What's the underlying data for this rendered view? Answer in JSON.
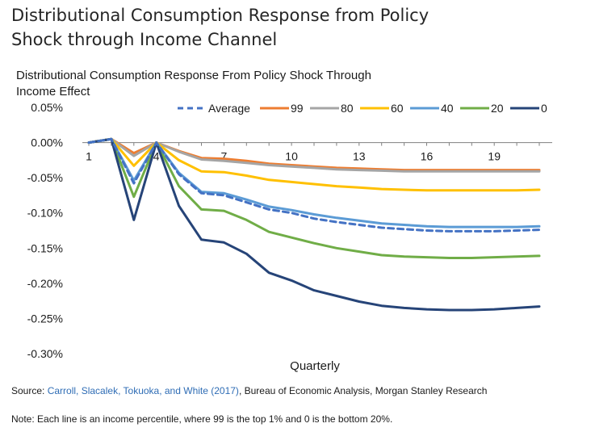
{
  "heading": {
    "line1": "Distributional Consumption Response from Policy",
    "line2": "Shock through Income Channel"
  },
  "chart_data": {
    "type": "line",
    "title_line1": "Distributional Consumption Response From Policy Shock Through",
    "title_line2": "Income Effect",
    "xlabel": "Quarterly",
    "ylabel": "",
    "x": [
      1,
      2,
      3,
      4,
      5,
      6,
      7,
      8,
      9,
      10,
      11,
      12,
      13,
      14,
      15,
      16,
      17,
      18,
      19,
      20,
      21
    ],
    "x_tick_labels": [
      "1",
      "4",
      "7",
      "10",
      "13",
      "16",
      "19"
    ],
    "x_tick_values": [
      1,
      4,
      7,
      10,
      13,
      16,
      19
    ],
    "y_tick_labels": [
      "0.05%",
      "0.00%",
      "-0.05%",
      "-0.10%",
      "-0.15%",
      "-0.20%",
      "-0.25%",
      "-0.30%"
    ],
    "y_tick_values": [
      0.05,
      0.0,
      -0.05,
      -0.1,
      -0.15,
      -0.2,
      -0.25,
      -0.3
    ],
    "ylim": [
      -0.3,
      0.05
    ],
    "legend_position": "top-right",
    "series": [
      {
        "name": "Average",
        "color": "#4472c4",
        "dashed": true,
        "values": [
          0.0,
          0.005,
          -0.058,
          0.0,
          -0.045,
          -0.072,
          -0.075,
          -0.085,
          -0.095,
          -0.1,
          -0.108,
          -0.113,
          -0.117,
          -0.121,
          -0.123,
          -0.125,
          -0.126,
          -0.126,
          -0.126,
          -0.125,
          -0.124
        ]
      },
      {
        "name": "99",
        "color": "#ed7d31",
        "dashed": false,
        "values": [
          0.0,
          0.005,
          -0.015,
          0.0,
          -0.012,
          -0.022,
          -0.023,
          -0.026,
          -0.03,
          -0.032,
          -0.034,
          -0.036,
          -0.037,
          -0.038,
          -0.039,
          -0.039,
          -0.039,
          -0.039,
          -0.039,
          -0.039,
          -0.039
        ]
      },
      {
        "name": "80",
        "color": "#a5a5a5",
        "dashed": false,
        "values": [
          0.0,
          0.005,
          -0.019,
          0.0,
          -0.013,
          -0.024,
          -0.026,
          -0.029,
          -0.032,
          -0.034,
          -0.036,
          -0.038,
          -0.039,
          -0.04,
          -0.041,
          -0.041,
          -0.041,
          -0.041,
          -0.041,
          -0.041,
          -0.041
        ]
      },
      {
        "name": "60",
        "color": "#ffc000",
        "dashed": false,
        "values": [
          0.0,
          0.005,
          -0.033,
          0.0,
          -0.025,
          -0.041,
          -0.042,
          -0.047,
          -0.053,
          -0.056,
          -0.059,
          -0.062,
          -0.064,
          -0.066,
          -0.067,
          -0.068,
          -0.068,
          -0.068,
          -0.068,
          -0.068,
          -0.067
        ]
      },
      {
        "name": "40",
        "color": "#5b9bd5",
        "dashed": false,
        "values": [
          0.0,
          0.005,
          -0.054,
          0.0,
          -0.043,
          -0.07,
          -0.072,
          -0.081,
          -0.091,
          -0.096,
          -0.102,
          -0.107,
          -0.111,
          -0.115,
          -0.117,
          -0.119,
          -0.12,
          -0.12,
          -0.12,
          -0.12,
          -0.119
        ]
      },
      {
        "name": "20",
        "color": "#70ad47",
        "dashed": false,
        "values": [
          0.0,
          0.005,
          -0.077,
          0.0,
          -0.062,
          -0.095,
          -0.097,
          -0.11,
          -0.127,
          -0.135,
          -0.143,
          -0.15,
          -0.155,
          -0.16,
          -0.162,
          -0.163,
          -0.164,
          -0.164,
          -0.163,
          -0.162,
          -0.161
        ]
      },
      {
        "name": "0",
        "color": "#264478",
        "dashed": false,
        "values": [
          0.0,
          0.005,
          -0.11,
          0.0,
          -0.09,
          -0.138,
          -0.142,
          -0.158,
          -0.185,
          -0.196,
          -0.21,
          -0.218,
          -0.226,
          -0.232,
          -0.235,
          -0.237,
          -0.238,
          -0.238,
          -0.237,
          -0.235,
          -0.233
        ]
      }
    ]
  },
  "footer": {
    "source_prefix": "Source: ",
    "source_link": "Carroll, Slacalek, Tokuoka, and White (2017)",
    "source_rest": ", Bureau of Economic Analysis, Morgan Stanley Research",
    "note": "Note: Each line is an income percentile, where 99 is the top 1% and 0 is the bottom 20%."
  }
}
